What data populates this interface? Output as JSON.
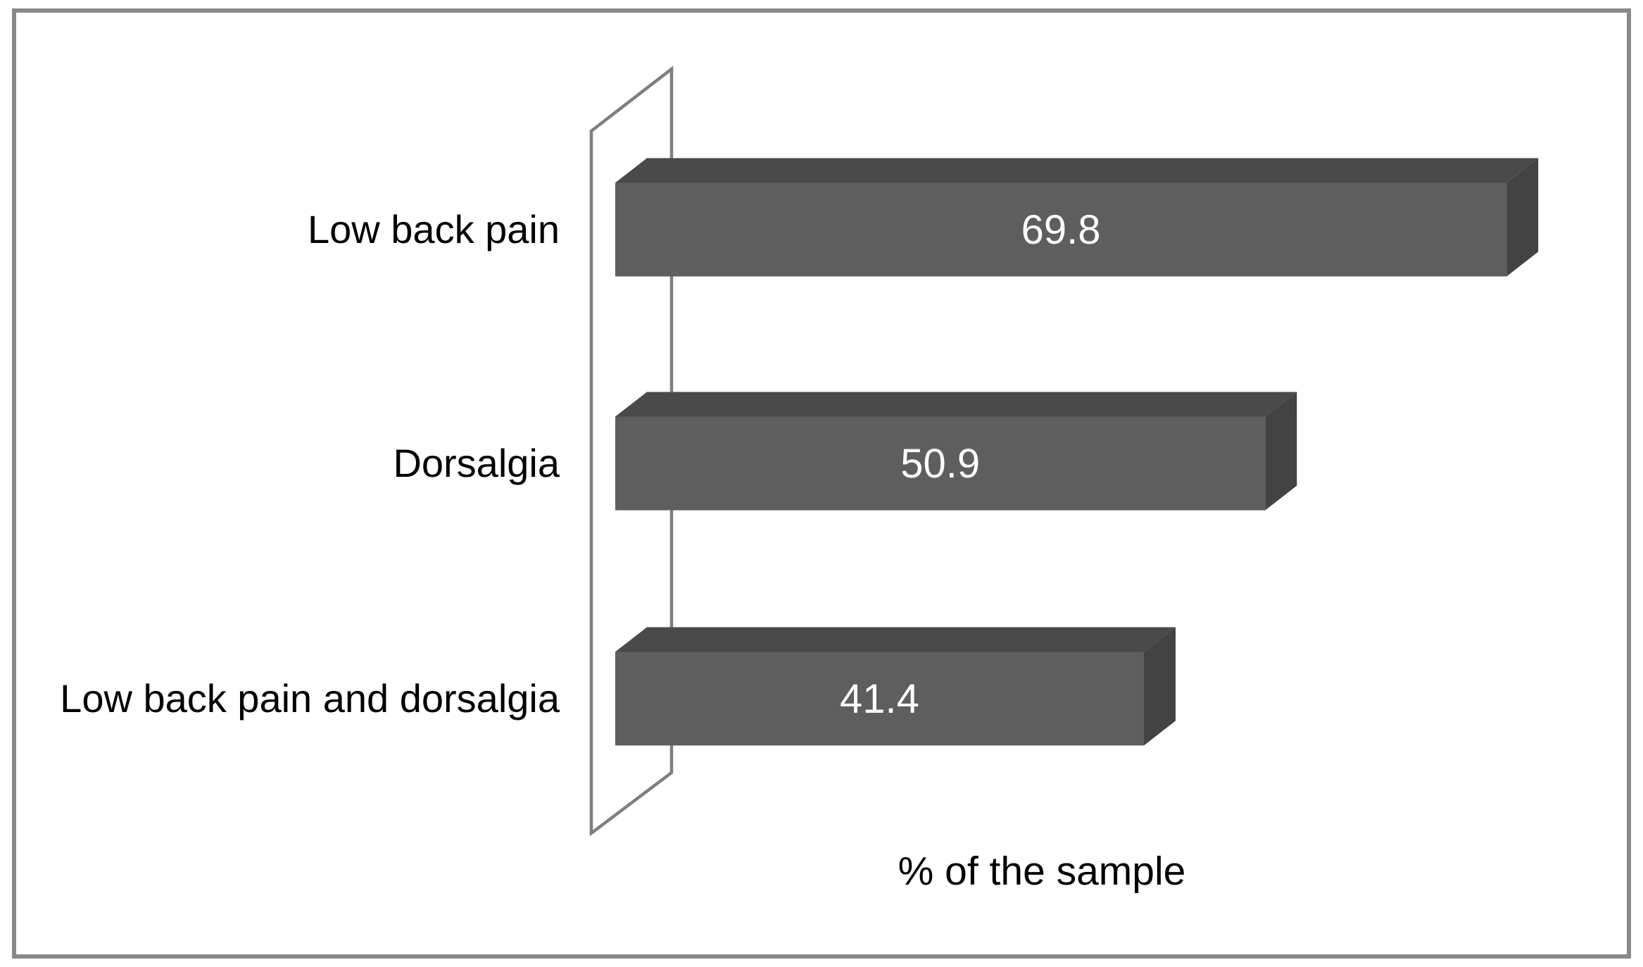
{
  "figure": {
    "background": "#ffffff",
    "border_color": "#898989"
  },
  "chart_data": {
    "type": "bar",
    "orientation": "horizontal",
    "style": "3d",
    "categories": [
      "Low back pain",
      "Dorsalgia",
      "Low back pain and dorsalgia"
    ],
    "values": [
      69.8,
      50.9,
      41.4
    ],
    "value_labels": [
      "69.8",
      "50.9",
      "41.4"
    ],
    "xlabel": "% of the sample",
    "title": "",
    "legend": "none",
    "grid": false,
    "axis_ticks": "none",
    "colors": {
      "bar_front": "#5e5e5e",
      "bar_top": "#4a4a4a",
      "bar_side": "#434343",
      "value_label": "#ffffff",
      "category_label": "#000000",
      "axis_label": "#000000",
      "wall_outline": "#7f7f7f"
    }
  }
}
